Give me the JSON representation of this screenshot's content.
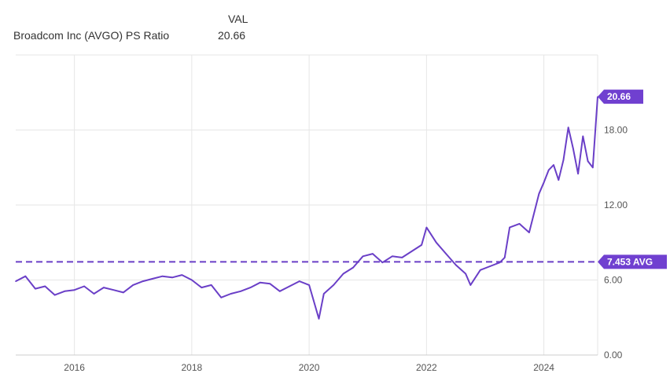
{
  "legend": {
    "column_header": "VAL",
    "series_label": "Broadcom Inc (AVGO) PS Ratio",
    "series_value": "20.66"
  },
  "colors": {
    "series": "#6a3fc7",
    "flag": "#7040d0",
    "grid": "#e6e6e6",
    "axis": "#cccccc"
  },
  "chart_data": {
    "type": "line",
    "title": "",
    "xlabel": "",
    "ylabel": "",
    "x_ticks": [
      "2016",
      "2018",
      "2020",
      "2022",
      "2024"
    ],
    "y_ticks": [
      "0.00",
      "6.00",
      "12.00",
      "18.00"
    ],
    "ylim": [
      0,
      24
    ],
    "xlim": [
      "2015-01",
      "2024-12"
    ],
    "grid": true,
    "series": [
      {
        "name": "Broadcom Inc (AVGO) PS Ratio",
        "x": [
          "2015-01",
          "2015-03",
          "2015-05",
          "2015-07",
          "2015-09",
          "2015-11",
          "2016-01",
          "2016-03",
          "2016-05",
          "2016-07",
          "2016-09",
          "2016-11",
          "2017-01",
          "2017-03",
          "2017-05",
          "2017-07",
          "2017-09",
          "2017-11",
          "2018-01",
          "2018-03",
          "2018-05",
          "2018-07",
          "2018-09",
          "2018-11",
          "2019-01",
          "2019-03",
          "2019-05",
          "2019-07",
          "2019-09",
          "2019-11",
          "2020-01",
          "2020-03",
          "2020-04",
          "2020-06",
          "2020-08",
          "2020-10",
          "2020-12",
          "2021-02",
          "2021-04",
          "2021-06",
          "2021-08",
          "2021-10",
          "2021-12",
          "2022-01",
          "2022-03",
          "2022-05",
          "2022-07",
          "2022-09",
          "2022-10",
          "2022-12",
          "2023-02",
          "2023-04",
          "2023-05",
          "2023-06",
          "2023-08",
          "2023-10",
          "2023-12",
          "2024-01",
          "2024-02",
          "2024-03",
          "2024-04",
          "2024-05",
          "2024-06",
          "2024-07",
          "2024-08",
          "2024-09",
          "2024-10",
          "2024-11",
          "2024-12"
        ],
        "values": [
          5.9,
          6.3,
          5.3,
          5.5,
          4.8,
          5.1,
          5.2,
          5.5,
          4.9,
          5.4,
          5.2,
          5.0,
          5.6,
          5.9,
          6.1,
          6.3,
          6.2,
          6.4,
          6.0,
          5.4,
          5.6,
          4.6,
          4.9,
          5.1,
          5.4,
          5.8,
          5.7,
          5.1,
          5.5,
          5.9,
          5.6,
          2.9,
          4.9,
          5.6,
          6.5,
          7.0,
          7.9,
          8.1,
          7.4,
          7.9,
          7.8,
          8.3,
          8.8,
          10.2,
          9.0,
          8.1,
          7.2,
          6.5,
          5.6,
          6.8,
          7.1,
          7.4,
          7.8,
          10.2,
          10.5,
          9.8,
          12.9,
          13.8,
          14.8,
          15.2,
          14.0,
          15.6,
          18.2,
          16.5,
          14.5,
          17.5,
          15.5,
          15.0,
          20.66
        ]
      }
    ],
    "reference_line": {
      "value": 7.453,
      "label": "7.453 AVG"
    },
    "last_value_label": "20.66"
  }
}
